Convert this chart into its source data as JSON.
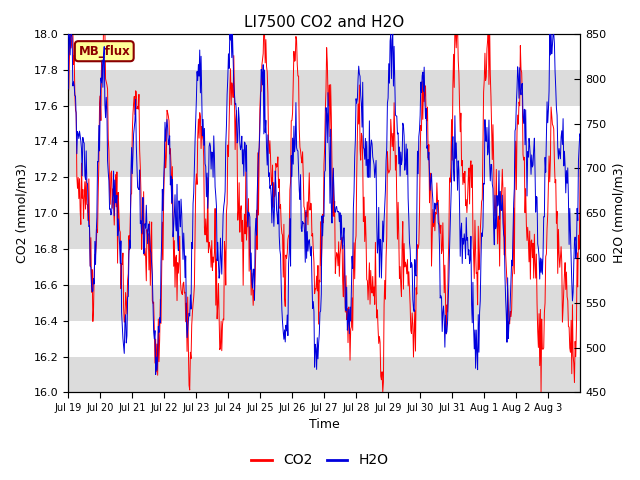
{
  "title": "LI7500 CO2 and H2O",
  "ylabel_left": "CO2 (mmol/m3)",
  "ylabel_right": "H2O (mmol/m3)",
  "xlabel": "Time",
  "ylim_left": [
    16.0,
    18.0
  ],
  "ylim_right": [
    450,
    850
  ],
  "color_co2": "#FF0000",
  "color_h2o": "#0000DD",
  "fig_bg_color": "#FFFFFF",
  "plot_bg_color": "#FFFFFF",
  "band_color_light": "#DCDCDC",
  "band_color_white": "#FFFFFF",
  "annotation_text": "MB_flux",
  "annotation_bg": "#FFFF99",
  "annotation_border": "#8B0000",
  "n_days": 16,
  "xtick_labels": [
    "Jul 19",
    "Jul 20",
    "Jul 21",
    "Jul 22",
    "Jul 23",
    "Jul 24",
    "Jul 25",
    "Jul 26",
    "Jul 27",
    "Jul 28",
    "Jul 29",
    "Jul 30",
    "Jul 31",
    "Aug 1",
    "Aug 2",
    "Aug 3"
  ],
  "seed": 42,
  "legend_co2": "CO2",
  "legend_h2o": "H2O",
  "yticks_left": [
    16.0,
    16.2,
    16.4,
    16.6,
    16.8,
    17.0,
    17.2,
    17.4,
    17.6,
    17.8,
    18.0
  ],
  "yticks_right": [
    450,
    500,
    550,
    600,
    650,
    700,
    750,
    800,
    850
  ]
}
